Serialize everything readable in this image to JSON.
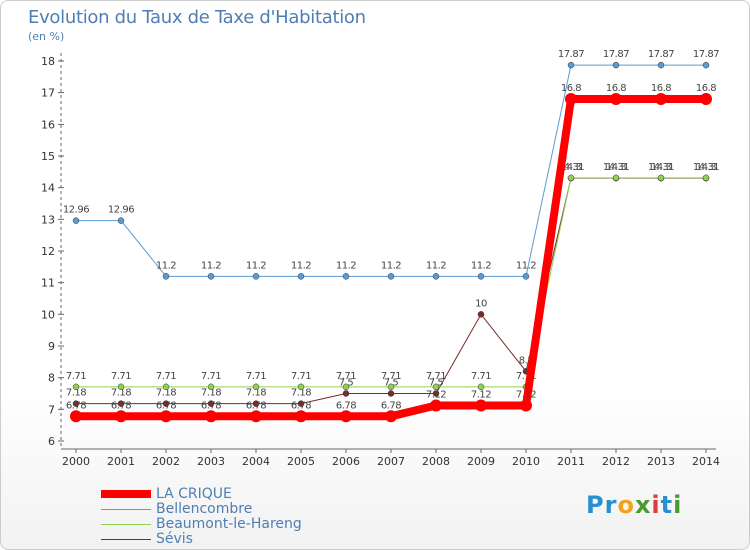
{
  "header": {
    "title": "Evolution du Taux de Taxe d'Habitation",
    "unit": "(en %)"
  },
  "brand": {
    "letters": [
      "P",
      "r",
      "o",
      "x",
      "i",
      "t",
      "i"
    ],
    "colors": [
      "#2a8fd0",
      "#2a8fd0",
      "#f2a21b",
      "#4a9b2d",
      "#e23b3b",
      "#2a8fd0",
      "#4a9b2d"
    ]
  },
  "chart_data": {
    "type": "line",
    "x": [
      "2000",
      "2001",
      "2002",
      "2003",
      "2004",
      "2005",
      "2006",
      "2007",
      "2008",
      "2009",
      "2010",
      "2011",
      "2012",
      "2013",
      "2014"
    ],
    "ylim": [
      6,
      18
    ],
    "yticks": [
      "6",
      "7",
      "8",
      "9",
      "10",
      "11",
      "12",
      "13",
      "14",
      "15",
      "16",
      "17",
      "18"
    ],
    "grid": false,
    "legend_position": "bottom-left",
    "series": [
      {
        "name": "Sévis",
        "color": "#7a2b2b",
        "width": 1,
        "values": [
          7.18,
          7.18,
          7.18,
          7.18,
          7.18,
          7.18,
          7.5,
          7.5,
          7.5,
          10,
          8.2,
          14.3,
          14.3,
          14.3,
          14.3
        ],
        "labels": [
          "7.18",
          "7.18",
          "7.18",
          "7.18",
          "7.18",
          "7.18",
          "7.5",
          "7.5",
          "7.5",
          "10",
          "8.2",
          "14.3",
          "14.3",
          "14.3",
          "14.3"
        ]
      },
      {
        "name": "Beaumont-le-Hareng",
        "color": "#8fd14f",
        "width": 1,
        "values": [
          7.71,
          7.71,
          7.71,
          7.71,
          7.71,
          7.71,
          7.71,
          7.71,
          7.71,
          7.71,
          7.71,
          14.31,
          14.31,
          14.31,
          14.31
        ],
        "labels": [
          "7.71",
          "7.71",
          "7.71",
          "7.71",
          "7.71",
          "7.71",
          "7.71",
          "7.71",
          "7.71",
          "7.71",
          "7.71",
          "14.31",
          "14.31",
          "14.31",
          "14.31"
        ]
      },
      {
        "name": "Bellencombre",
        "color": "#5b9bd5",
        "width": 1,
        "values": [
          12.96,
          12.96,
          11.2,
          11.2,
          11.2,
          11.2,
          11.2,
          11.2,
          11.2,
          11.2,
          11.2,
          17.87,
          17.87,
          17.87,
          17.87
        ],
        "labels": [
          "12.96",
          "12.96",
          "11.2",
          "11.2",
          "11.2",
          "11.2",
          "11.2",
          "11.2",
          "11.2",
          "11.2",
          "11.2",
          "17.87",
          "17.87",
          "17.87",
          "17.87"
        ]
      },
      {
        "name": "LA CRIQUE",
        "color": "#ff0000",
        "width": 8,
        "values": [
          6.78,
          6.78,
          6.78,
          6.78,
          6.78,
          6.78,
          6.78,
          6.78,
          7.12,
          7.12,
          7.12,
          16.8,
          16.8,
          16.8,
          16.8
        ],
        "labels": [
          "6.78",
          "6.78",
          "6.78",
          "6.78",
          "6.78",
          "6.78",
          "6.78",
          "6.78",
          "7.12",
          "7.12",
          "7.12",
          "16.8",
          "16.8",
          "16.8",
          "16.8"
        ]
      }
    ],
    "legend": [
      {
        "name": "LA CRIQUE",
        "color": "#ff0000",
        "width": 8
      },
      {
        "name": "Bellencombre",
        "color": "#5b9bd5",
        "width": 1
      },
      {
        "name": "Beaumont-le-Hareng",
        "color": "#8fd14f",
        "width": 1
      },
      {
        "name": "Sévis",
        "color": "#7a2b2b",
        "width": 1
      }
    ]
  }
}
